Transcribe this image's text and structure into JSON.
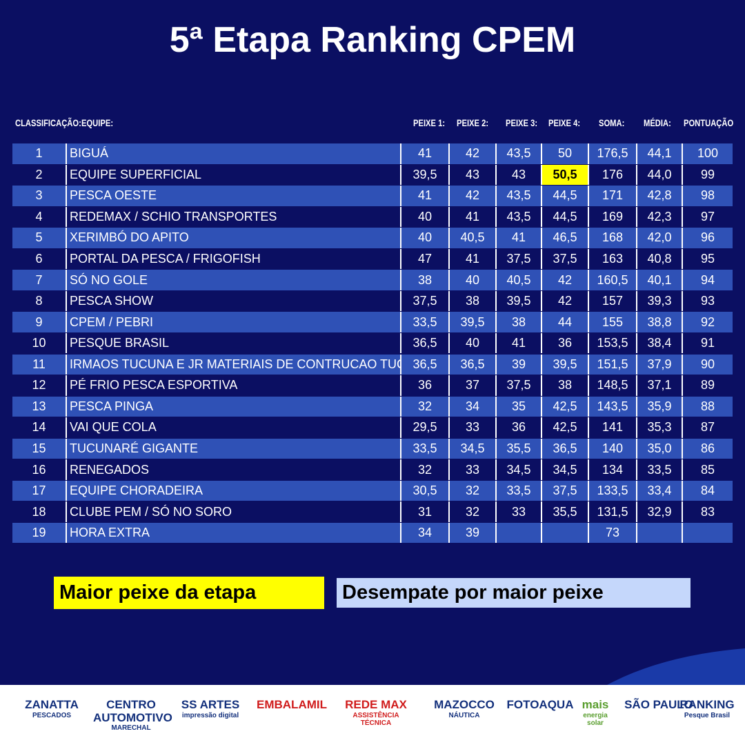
{
  "header": {
    "title": "5ª Etapa Ranking CPEM"
  },
  "table": {
    "columns": [
      "CLASSIFICAÇÃO:",
      "EQUIPE:",
      "PEIXE 1:",
      "PEIXE 2:",
      "PEIXE 3:",
      "PEIXE 4:",
      "SOMA:",
      "MÉDIA:",
      "PONTUAÇÃO"
    ],
    "rows": [
      [
        "1",
        "BIGUÁ",
        "41",
        "42",
        "43,5",
        "50",
        "176,5",
        "44,1",
        "100"
      ],
      [
        "2",
        "EQUIPE SUPERFICIAL",
        "39,5",
        "43",
        "43",
        "50,5",
        "176",
        "44,0",
        "99"
      ],
      [
        "3",
        "PESCA OESTE",
        "41",
        "42",
        "43,5",
        "44,5",
        "171",
        "42,8",
        "98"
      ],
      [
        "4",
        "REDEMAX / SCHIO TRANSPORTES",
        "40",
        "41",
        "43,5",
        "44,5",
        "169",
        "42,3",
        "97"
      ],
      [
        "5",
        "XERIMBÓ DO APITO",
        "40",
        "40,5",
        "41",
        "46,5",
        "168",
        "42,0",
        "96"
      ],
      [
        "6",
        "PORTAL DA PESCA / FRIGOFISH",
        "47",
        "41",
        "37,5",
        "37,5",
        "163",
        "40,8",
        "95"
      ],
      [
        "7",
        "SÓ NO GOLE",
        "38",
        "40",
        "40,5",
        "42",
        "160,5",
        "40,1",
        "94"
      ],
      [
        "8",
        "PESCA SHOW",
        "37,5",
        "38",
        "39,5",
        "42",
        "157",
        "39,3",
        "93"
      ],
      [
        "9",
        "CPEM / PEBRI",
        "33,5",
        "39,5",
        "38",
        "44",
        "155",
        "38,8",
        "92"
      ],
      [
        "10",
        "PESQUE BRASIL",
        "36,5",
        "40",
        "41",
        "36",
        "153,5",
        "38,4",
        "91"
      ],
      [
        "11",
        "IRMAOS TUCUNA E JR MATERIAIS DE CONTRUCAO TUCUNINHA",
        "36,5",
        "36,5",
        "39",
        "39,5",
        "151,5",
        "37,9",
        "90"
      ],
      [
        "12",
        "PÉ FRIO PESCA ESPORTIVA",
        "36",
        "37",
        "37,5",
        "38",
        "148,5",
        "37,1",
        "89"
      ],
      [
        "13",
        "PESCA PINGA",
        "32",
        "34",
        "35",
        "42,5",
        "143,5",
        "35,9",
        "88"
      ],
      [
        "14",
        "VAI QUE COLA",
        "29,5",
        "33",
        "36",
        "42,5",
        "141",
        "35,3",
        "87"
      ],
      [
        "15",
        "TUCUNARÉ GIGANTE",
        "33,5",
        "34,5",
        "35,5",
        "36,5",
        "140",
        "35,0",
        "86"
      ],
      [
        "16",
        "RENEGADOS",
        "32",
        "33",
        "34,5",
        "34,5",
        "134",
        "33,5",
        "85"
      ],
      [
        "17",
        "EQUIPE CHORADEIRA",
        "30,5",
        "32",
        "33,5",
        "37,5",
        "133,5",
        "33,4",
        "84"
      ],
      [
        "18",
        "CLUBE PEM / SÓ NO SORO",
        "31",
        "32",
        "33",
        "35,5",
        "131,5",
        "32,9",
        "83"
      ],
      [
        "19",
        "HORA EXTRA",
        "34",
        "39",
        null,
        null,
        "73",
        null,
        null
      ]
    ]
  },
  "legend": {
    "highlight": "Maior peixe da etapa",
    "tiebreak": "Desempate por maior peixe"
  },
  "sponsors": [
    [
      "ZANATTA",
      "PESCADOS"
    ],
    [
      "CENTRO AUTOMOTIVO",
      "MARECHAL"
    ],
    [
      "SS ARTES",
      "impressão digital"
    ],
    [
      "EMBALAMIL"
    ],
    [
      "REDE MAX",
      "ASSISTÊNCIA TÉCNICA"
    ],
    [
      "MAZOCCO",
      "NÁUTICA"
    ],
    [
      "FOTOAQUA"
    ],
    [
      "mais",
      "energia",
      "solar"
    ],
    [
      "SÃO PAULO"
    ],
    [
      "RANKING",
      "Pesque Brasil"
    ]
  ]
}
